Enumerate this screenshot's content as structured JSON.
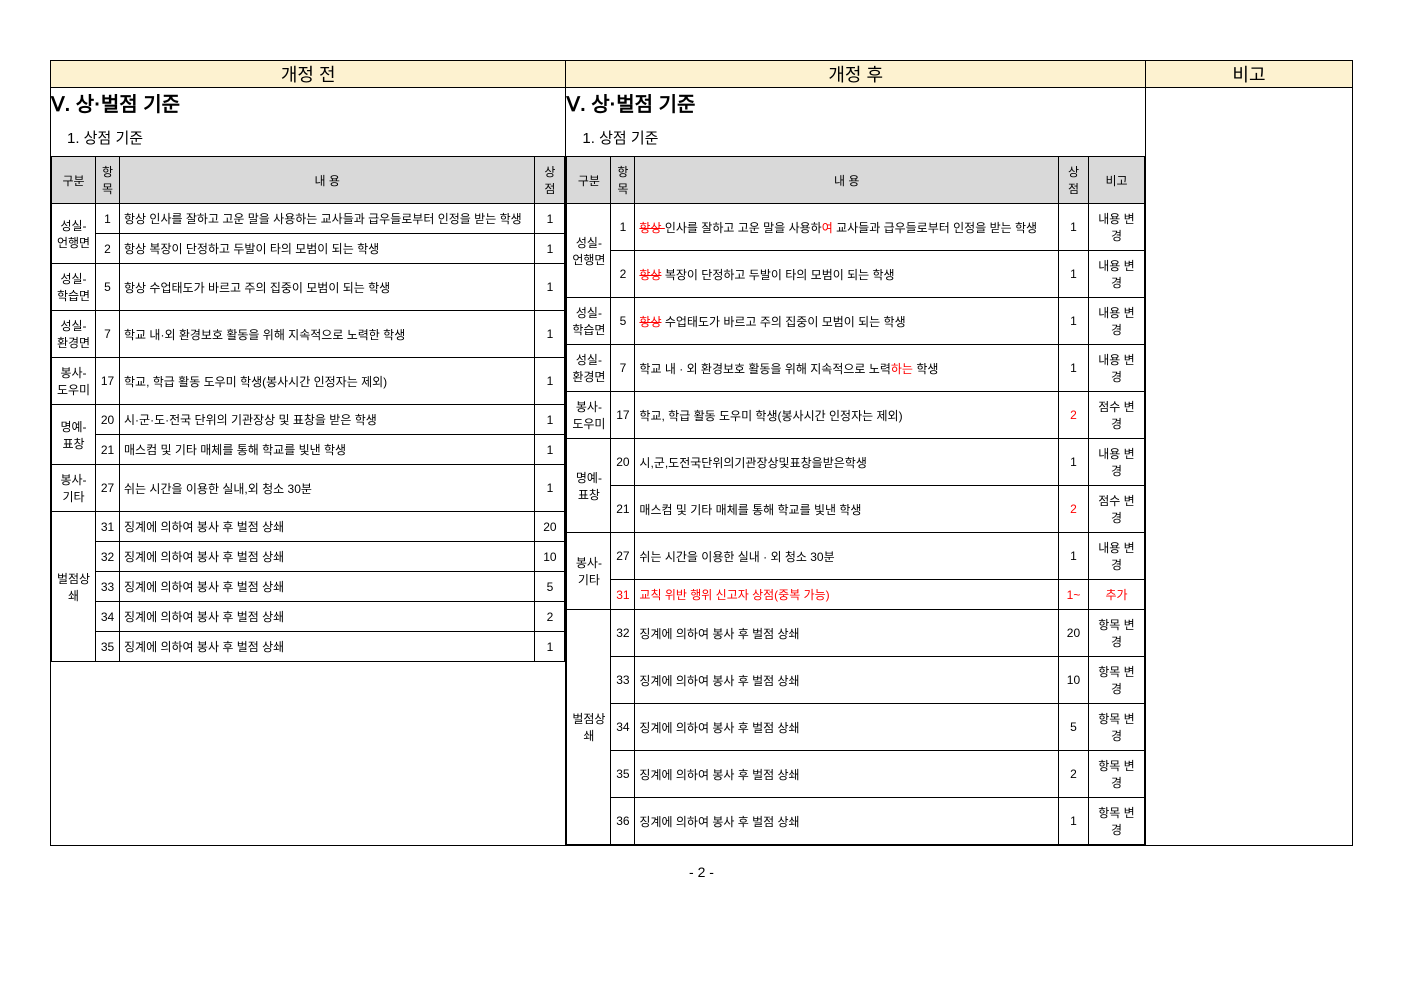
{
  "headers": {
    "before": "개정 전",
    "after": "개정 후",
    "remarks": "비고"
  },
  "section_title": "Ⅴ. 상·벌점 기준",
  "subsection": "1.  상점 기준",
  "table_headers": {
    "gubun": "구분",
    "hangmok": "항목",
    "naeyong": "내      용",
    "sangjeom": "상점",
    "bigo": "비고"
  },
  "before_rows": [
    {
      "gubun": "성실-언행면",
      "rowspan": 2,
      "hangmok": "1",
      "naeyong": "항상 인사를 잘하고 고운 말을 사용하는 교사들과 급우들로부터 인정을 받는 학생",
      "sangjeom": "1"
    },
    {
      "hangmok": "2",
      "naeyong": "항상 복장이 단정하고 두발이 타의 모범이 되는 학생",
      "sangjeom": "1"
    },
    {
      "gubun": "성실-학습면",
      "hangmok": "5",
      "naeyong": "항상 수업태도가 바르고 주의 집중이 모범이 되는 학생",
      "sangjeom": "1"
    },
    {
      "gubun": "성실-환경면",
      "hangmok": "7",
      "naeyong": "학교 내·외 환경보호 활동을 위해 지속적으로 노력한 학생",
      "sangjeom": "1"
    },
    {
      "gubun": "봉사-도우미",
      "hangmok": "17",
      "naeyong": "학교, 학급 활동 도우미 학생(봉사시간 인정자는 제외)",
      "sangjeom": "1"
    },
    {
      "gubun": "명예-표창",
      "rowspan": 2,
      "hangmok": "20",
      "naeyong": "시·군·도·전국 단위의  기관장상 및 표창을 받은 학생",
      "sangjeom": "1"
    },
    {
      "hangmok": "21",
      "naeyong": "매스컴 및 기타 매체를 통해 학교를 빛낸 학생",
      "sangjeom": "1"
    },
    {
      "gubun": "봉사-기타",
      "hangmok": "27",
      "naeyong": "쉬는 시간을 이용한 실내,외 청소 30분",
      "sangjeom": "1"
    },
    {
      "gubun": "벌점상쇄",
      "rowspan": 5,
      "hangmok": "31",
      "naeyong": "징계에 의하여 봉사 후 벌점 상쇄",
      "sangjeom": "20"
    },
    {
      "hangmok": "32",
      "naeyong": "징계에 의하여 봉사 후 벌점 상쇄",
      "sangjeom": "10"
    },
    {
      "hangmok": "33",
      "naeyong": "징계에 의하여 봉사 후 벌점 상쇄",
      "sangjeom": "5"
    },
    {
      "hangmok": "34",
      "naeyong": "징계에 의하여 봉사 후 벌점 상쇄",
      "sangjeom": "2"
    },
    {
      "hangmok": "35",
      "naeyong": "징계에 의하여 봉사 후 벌점 상쇄",
      "sangjeom": "1"
    }
  ],
  "after_rows": [
    {
      "gubun": "성실-언행면",
      "rowspan": 2,
      "hangmok": "1",
      "naeyong_html": "<span class='strike-red'>항상 </span>인사를 잘하고 고운 말을 사용하<span class='red'>여</span> 교사들과 급우들로부터 인정을 받는 학생",
      "sangjeom": "1",
      "bigo": "내용 변경"
    },
    {
      "hangmok": "2",
      "naeyong_html": "<span class='strike-red'>항상</span> 복장이 단정하고 두발이 타의 모범이 되는 학생",
      "sangjeom": "1",
      "bigo": "내용 변경"
    },
    {
      "gubun": "성실-학습면",
      "hangmok": "5",
      "naeyong_html": "<span class='strike-red'>항상</span> 수업태도가 바르고 주의 집중이 모범이 되는 학생",
      "sangjeom": "1",
      "bigo": "내용 변경"
    },
    {
      "gubun": "성실-환경면",
      "hangmok": "7",
      "naeyong_html": "학교 내 · 외 환경보호 활동을 위해 지속적으로 노력<span class='red'>하는</span> 학생",
      "sangjeom": "1",
      "bigo": "내용 변경"
    },
    {
      "gubun": "봉사-도우미",
      "hangmok": "17",
      "naeyong": "학교, 학급 활동 도우미 학생(봉사시간 인정자는 제외)",
      "sangjeom_html": "<span class='red'>2</span>",
      "bigo": "점수 변경"
    },
    {
      "gubun": "명예-표창",
      "rowspan": 2,
      "hangmok": "20",
      "naeyong": "시,군,도전국단위의기관장상및표창을받은학생",
      "sangjeom": "1",
      "bigo": "내용 변경"
    },
    {
      "hangmok": "21",
      "naeyong": "매스컴 및 기타 매체를 통해 학교를 빛낸 학생",
      "sangjeom_html": "<span class='red'>2</span>",
      "bigo": "점수 변경"
    },
    {
      "gubun": "봉사-기타",
      "rowspan": 2,
      "hangmok": "27",
      "naeyong": "쉬는 시간을 이용한 실내 · 외 청소 30분",
      "sangjeom": "1",
      "bigo": "내용 변경"
    },
    {
      "hangmok_html": "<span class='red'>31</span>",
      "naeyong_html": "<span class='red'>교칙 위반 행위 신고자 상점(중복 가능)</span>",
      "sangjeom_html": "<span class='red'>1~</span>",
      "bigo_html": "<span class='red'>추가</span>"
    },
    {
      "gubun": "벌점상쇄",
      "rowspan": 5,
      "hangmok": "32",
      "naeyong": "징계에 의하여 봉사 후 벌점 상쇄",
      "sangjeom": "20",
      "bigo": "항목 변경"
    },
    {
      "hangmok": "33",
      "naeyong": "징계에 의하여 봉사 후 벌점 상쇄",
      "sangjeom": "10",
      "bigo": "항목 변경"
    },
    {
      "hangmok": "34",
      "naeyong": "징계에 의하여 봉사 후 벌점 상쇄",
      "sangjeom": "5",
      "bigo": "항목 변경"
    },
    {
      "hangmok": "35",
      "naeyong": "징계에 의하여 봉사 후 벌점 상쇄",
      "sangjeom": "2",
      "bigo": "항목 변경"
    },
    {
      "hangmok": "36",
      "naeyong": "징계에 의하여 봉사 후 벌점 상쇄",
      "sangjeom": "1",
      "bigo": "항목 변경"
    }
  ],
  "page_num": "- 2 -",
  "colors": {
    "header_bg": "#fdf2d0",
    "th_bg": "#d9d9d9",
    "border": "#000000",
    "red": "#ff0000"
  }
}
